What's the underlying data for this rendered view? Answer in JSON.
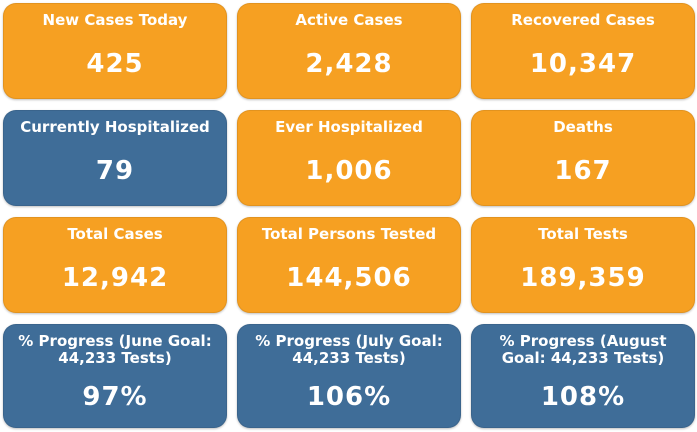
{
  "tiles": [
    {
      "label": "New Cases Today",
      "value": "425"
    },
    {
      "label": "Active Cases",
      "value": "2,428"
    },
    {
      "label": "Recovered Cases",
      "value": "10,347"
    },
    {
      "label": "Currently Hospitalized",
      "value": "79"
    },
    {
      "label": "Ever Hospitalized",
      "value": "1,006"
    },
    {
      "label": "Deaths",
      "value": "167"
    },
    {
      "label": "Total Cases",
      "value": "12,942"
    },
    {
      "label": "Total Persons Tested",
      "value": "144,506"
    },
    {
      "label": "Total Tests",
      "value": "189,359"
    },
    {
      "label": "% Progress (June Goal: 44,233 Tests)",
      "value": "97%"
    },
    {
      "label": "% Progress (July Goal: 44,233 Tests)",
      "value": "106%"
    },
    {
      "label": "% Progress (August Goal: 44,233 Tests)",
      "value": "108%"
    }
  ],
  "colors": {
    "orange": "#f6a022",
    "blue": "#3f6d98",
    "text": "#ffffff"
  }
}
